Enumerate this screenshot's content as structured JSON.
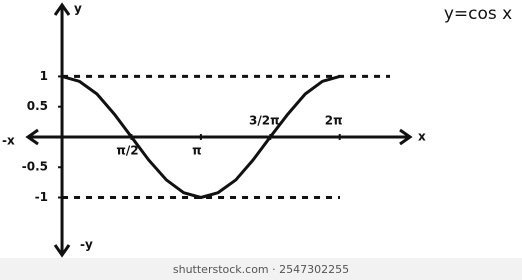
{
  "chart_data": {
    "type": "line",
    "title": "y=cos x",
    "x_label": "x",
    "x_label_negative": "-x",
    "y_label": "y",
    "y_label_negative": "-y",
    "x": [
      0,
      0.39,
      0.79,
      1.18,
      1.57,
      1.96,
      2.36,
      2.75,
      3.14,
      3.53,
      3.93,
      4.32,
      4.71,
      5.11,
      5.5,
      5.89,
      6.28
    ],
    "series": [
      {
        "name": "cos x",
        "color": "#111111",
        "values": [
          1,
          0.92,
          0.71,
          0.38,
          0,
          -0.38,
          -0.71,
          -0.92,
          -1,
          -0.92,
          -0.71,
          -0.38,
          0,
          0.38,
          0.71,
          0.92,
          1
        ]
      }
    ],
    "xlim": [
      -0.77,
      7.87
    ],
    "ylim": [
      -1.95,
      2.18
    ],
    "xticks": [
      {
        "value": 1.57,
        "label": "π/2"
      },
      {
        "value": 3.14,
        "label": "π"
      },
      {
        "value": 4.71,
        "label": "3/2π"
      },
      {
        "value": 6.28,
        "label": "2π"
      }
    ],
    "yticks": [
      1,
      0.5,
      -0.5,
      -1
    ],
    "dashed_levels": [
      1,
      -1
    ],
    "watermark": "shutterstock.com · 2547302255"
  }
}
